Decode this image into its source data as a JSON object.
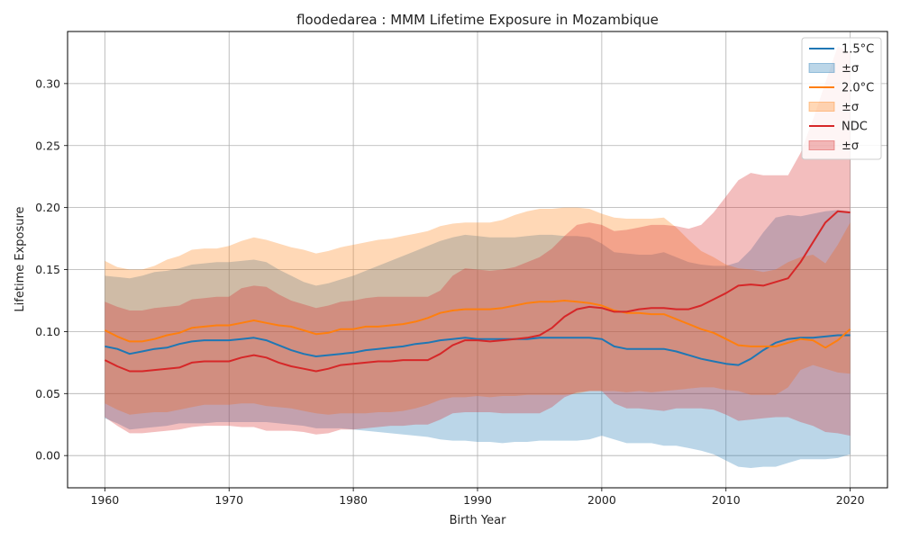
{
  "chart_data": {
    "type": "line",
    "title": "floodedarea : MMM Lifetime Exposure in Mozambique",
    "xlabel": "Birth Year",
    "ylabel": "Lifetime Exposure",
    "xlim": [
      1957,
      2023
    ],
    "ylim": [
      -0.026,
      0.342
    ],
    "xticks": [
      1960,
      1970,
      1980,
      1990,
      2000,
      2010,
      2020
    ],
    "yticks": [
      0.0,
      0.05,
      0.1,
      0.15,
      0.2,
      0.25,
      0.3
    ],
    "ytick_labels": [
      "0.00",
      "0.05",
      "0.10",
      "0.15",
      "0.20",
      "0.25",
      "0.30"
    ],
    "grid": true,
    "legend_position": "top-right",
    "x": [
      1960,
      1961,
      1962,
      1963,
      1964,
      1965,
      1966,
      1967,
      1968,
      1969,
      1970,
      1971,
      1972,
      1973,
      1974,
      1975,
      1976,
      1977,
      1978,
      1979,
      1980,
      1981,
      1982,
      1983,
      1984,
      1985,
      1986,
      1987,
      1988,
      1989,
      1990,
      1991,
      1992,
      1993,
      1994,
      1995,
      1996,
      1997,
      1998,
      1999,
      2000,
      2001,
      2002,
      2003,
      2004,
      2005,
      2006,
      2007,
      2008,
      2009,
      2010,
      2011,
      2012,
      2013,
      2014,
      2015,
      2016,
      2017,
      2018,
      2019,
      2020
    ],
    "series": [
      {
        "name": "1.5°C",
        "band_label": "±σ",
        "color": "#1f77b4",
        "band_color": "#a6c8e4",
        "mean": [
          0.088,
          0.086,
          0.082,
          0.084,
          0.086,
          0.087,
          0.09,
          0.092,
          0.093,
          0.093,
          0.093,
          0.094,
          0.095,
          0.093,
          0.089,
          0.085,
          0.082,
          0.08,
          0.081,
          0.082,
          0.083,
          0.085,
          0.086,
          0.087,
          0.088,
          0.09,
          0.091,
          0.093,
          0.094,
          0.095,
          0.094,
          0.094,
          0.094,
          0.094,
          0.094,
          0.095,
          0.095,
          0.095,
          0.095,
          0.095,
          0.094,
          0.088,
          0.086,
          0.086,
          0.086,
          0.086,
          0.084,
          0.081,
          0.078,
          0.076,
          0.074,
          0.073,
          0.078,
          0.085,
          0.091,
          0.094,
          0.095,
          0.095,
          0.096,
          0.097,
          0.097
        ],
        "upper": [
          0.145,
          0.144,
          0.143,
          0.145,
          0.148,
          0.149,
          0.151,
          0.154,
          0.155,
          0.156,
          0.156,
          0.157,
          0.158,
          0.156,
          0.15,
          0.145,
          0.14,
          0.137,
          0.139,
          0.142,
          0.145,
          0.149,
          0.153,
          0.157,
          0.161,
          0.165,
          0.169,
          0.173,
          0.176,
          0.178,
          0.177,
          0.176,
          0.176,
          0.176,
          0.177,
          0.178,
          0.178,
          0.177,
          0.177,
          0.176,
          0.171,
          0.164,
          0.163,
          0.162,
          0.162,
          0.164,
          0.16,
          0.156,
          0.154,
          0.153,
          0.153,
          0.156,
          0.166,
          0.18,
          0.192,
          0.194,
          0.193,
          0.195,
          0.197,
          0.198,
          0.197
        ],
        "lower": [
          0.03,
          0.026,
          0.021,
          0.022,
          0.023,
          0.024,
          0.026,
          0.026,
          0.026,
          0.027,
          0.027,
          0.027,
          0.027,
          0.027,
          0.026,
          0.025,
          0.024,
          0.022,
          0.022,
          0.022,
          0.021,
          0.02,
          0.019,
          0.018,
          0.017,
          0.016,
          0.015,
          0.013,
          0.012,
          0.012,
          0.011,
          0.011,
          0.01,
          0.011,
          0.011,
          0.012,
          0.012,
          0.012,
          0.012,
          0.013,
          0.016,
          0.013,
          0.01,
          0.01,
          0.01,
          0.008,
          0.008,
          0.006,
          0.004,
          0.001,
          -0.004,
          -0.009,
          -0.01,
          -0.009,
          -0.009,
          -0.006,
          -0.003,
          -0.003,
          -0.003,
          -0.002,
          0.001
        ]
      },
      {
        "name": "2.0°C",
        "band_label": "±σ",
        "color": "#ff7f0e",
        "band_color": "#ffcc99",
        "mean": [
          0.101,
          0.096,
          0.092,
          0.092,
          0.094,
          0.097,
          0.099,
          0.103,
          0.104,
          0.105,
          0.105,
          0.107,
          0.109,
          0.107,
          0.105,
          0.104,
          0.101,
          0.098,
          0.099,
          0.102,
          0.102,
          0.104,
          0.104,
          0.105,
          0.106,
          0.108,
          0.111,
          0.115,
          0.117,
          0.118,
          0.118,
          0.118,
          0.119,
          0.121,
          0.123,
          0.124,
          0.124,
          0.125,
          0.124,
          0.123,
          0.121,
          0.117,
          0.115,
          0.115,
          0.114,
          0.114,
          0.11,
          0.106,
          0.102,
          0.099,
          0.094,
          0.089,
          0.088,
          0.088,
          0.088,
          0.091,
          0.094,
          0.093,
          0.087,
          0.093,
          0.102
        ],
        "upper": [
          0.157,
          0.152,
          0.15,
          0.15,
          0.153,
          0.158,
          0.161,
          0.166,
          0.167,
          0.167,
          0.169,
          0.173,
          0.176,
          0.174,
          0.171,
          0.168,
          0.166,
          0.163,
          0.165,
          0.168,
          0.17,
          0.172,
          0.174,
          0.175,
          0.177,
          0.179,
          0.181,
          0.185,
          0.187,
          0.188,
          0.188,
          0.188,
          0.19,
          0.194,
          0.197,
          0.199,
          0.199,
          0.2,
          0.2,
          0.199,
          0.195,
          0.192,
          0.191,
          0.191,
          0.191,
          0.192,
          0.184,
          0.174,
          0.165,
          0.16,
          0.154,
          0.151,
          0.15,
          0.148,
          0.15,
          0.156,
          0.16,
          0.162,
          0.155,
          0.17,
          0.188
        ],
        "lower": [
          0.042,
          0.037,
          0.033,
          0.034,
          0.035,
          0.035,
          0.037,
          0.039,
          0.041,
          0.041,
          0.041,
          0.042,
          0.042,
          0.04,
          0.039,
          0.038,
          0.036,
          0.034,
          0.033,
          0.034,
          0.034,
          0.034,
          0.035,
          0.035,
          0.036,
          0.038,
          0.041,
          0.045,
          0.047,
          0.047,
          0.048,
          0.047,
          0.048,
          0.048,
          0.049,
          0.049,
          0.049,
          0.049,
          0.05,
          0.052,
          0.052,
          0.052,
          0.051,
          0.052,
          0.051,
          0.052,
          0.053,
          0.054,
          0.055,
          0.055,
          0.053,
          0.052,
          0.049,
          0.049,
          0.049,
          0.055,
          0.069,
          0.073,
          0.07,
          0.067,
          0.066
        ]
      },
      {
        "name": "NDC",
        "band_label": "±σ",
        "color": "#d62728",
        "band_color": "#eaa9a9",
        "mean": [
          0.077,
          0.072,
          0.068,
          0.068,
          0.069,
          0.07,
          0.071,
          0.075,
          0.076,
          0.076,
          0.076,
          0.079,
          0.081,
          0.079,
          0.075,
          0.072,
          0.07,
          0.068,
          0.07,
          0.073,
          0.074,
          0.075,
          0.076,
          0.076,
          0.077,
          0.077,
          0.077,
          0.082,
          0.089,
          0.093,
          0.093,
          0.092,
          0.093,
          0.094,
          0.095,
          0.097,
          0.103,
          0.112,
          0.118,
          0.12,
          0.119,
          0.116,
          0.116,
          0.118,
          0.119,
          0.119,
          0.118,
          0.118,
          0.121,
          0.126,
          0.131,
          0.137,
          0.138,
          0.137,
          0.14,
          0.143,
          0.156,
          0.172,
          0.188,
          0.197,
          0.196
        ],
        "upper": [
          0.124,
          0.12,
          0.117,
          0.117,
          0.119,
          0.12,
          0.121,
          0.126,
          0.127,
          0.128,
          0.128,
          0.135,
          0.137,
          0.136,
          0.13,
          0.125,
          0.122,
          0.119,
          0.121,
          0.124,
          0.125,
          0.127,
          0.128,
          0.128,
          0.128,
          0.128,
          0.128,
          0.133,
          0.145,
          0.151,
          0.15,
          0.149,
          0.15,
          0.152,
          0.156,
          0.16,
          0.167,
          0.177,
          0.186,
          0.188,
          0.186,
          0.181,
          0.182,
          0.184,
          0.186,
          0.186,
          0.185,
          0.183,
          0.186,
          0.196,
          0.209,
          0.222,
          0.228,
          0.226,
          0.226,
          0.226,
          0.244,
          0.271,
          0.301,
          0.33,
          0.325
        ],
        "lower": [
          0.031,
          0.024,
          0.018,
          0.018,
          0.019,
          0.02,
          0.021,
          0.023,
          0.024,
          0.024,
          0.024,
          0.023,
          0.023,
          0.02,
          0.02,
          0.02,
          0.019,
          0.017,
          0.018,
          0.021,
          0.021,
          0.022,
          0.023,
          0.024,
          0.024,
          0.025,
          0.025,
          0.029,
          0.034,
          0.035,
          0.035,
          0.035,
          0.034,
          0.034,
          0.034,
          0.034,
          0.039,
          0.047,
          0.051,
          0.052,
          0.052,
          0.042,
          0.038,
          0.038,
          0.037,
          0.036,
          0.038,
          0.038,
          0.038,
          0.037,
          0.033,
          0.028,
          0.029,
          0.03,
          0.031,
          0.031,
          0.027,
          0.024,
          0.019,
          0.018,
          0.016
        ]
      }
    ]
  }
}
